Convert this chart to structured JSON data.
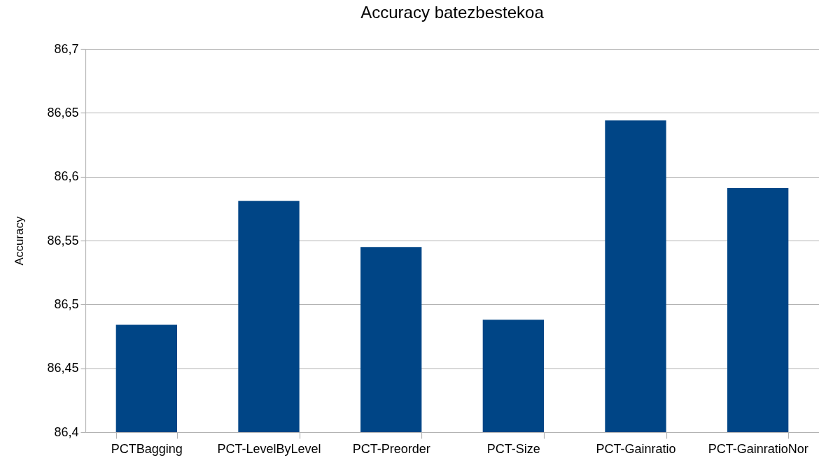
{
  "chart_data": {
    "type": "bar",
    "title": "Accuracy batezbestekoa",
    "ylabel": "Accuracy",
    "categories": [
      "PCTBagging",
      "PCT-LevelByLevel",
      "PCT-Preorder",
      "PCT-Size",
      "PCT-Gainratio",
      "PCT-GainratioNor"
    ],
    "values": [
      86.484,
      86.581,
      86.545,
      86.488,
      86.644,
      86.591
    ],
    "color": "#004586",
    "ylim": [
      86.4,
      86.7
    ],
    "yticks": [
      {
        "value": 86.4,
        "label": "86,4"
      },
      {
        "value": 86.45,
        "label": "86,45"
      },
      {
        "value": 86.5,
        "label": "86,5"
      },
      {
        "value": 86.55,
        "label": "86,55"
      },
      {
        "value": 86.6,
        "label": "86,6"
      },
      {
        "value": 86.65,
        "label": "86,65"
      },
      {
        "value": 86.7,
        "label": "86,7"
      }
    ],
    "grid": "y"
  }
}
